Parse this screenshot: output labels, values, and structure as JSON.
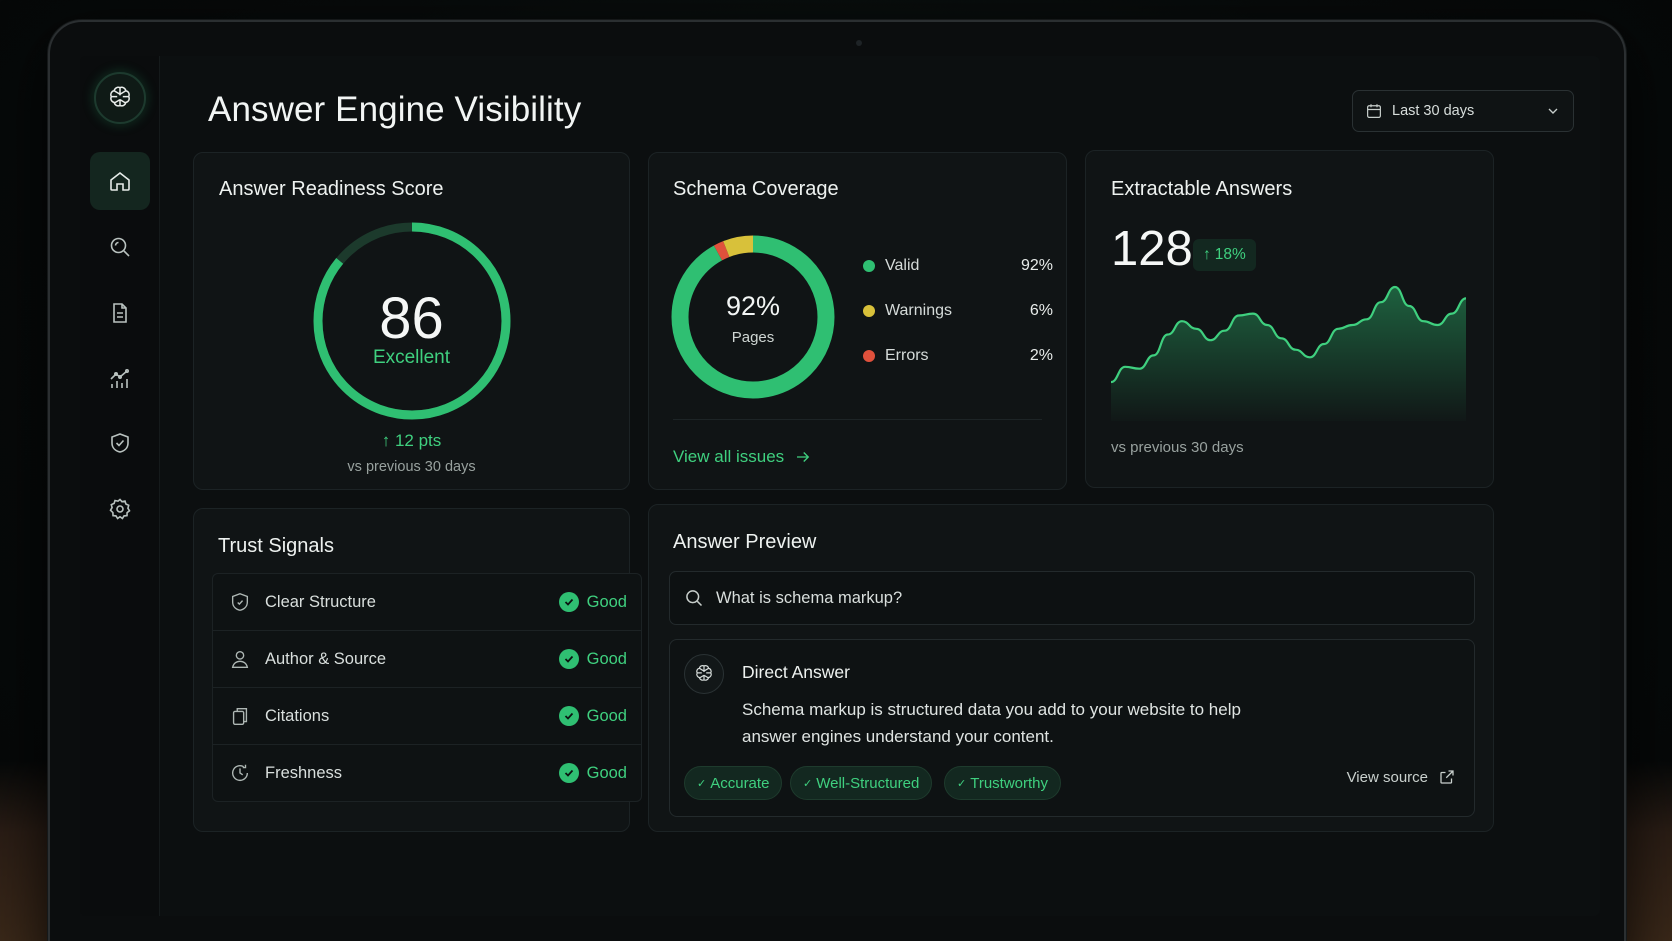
{
  "header": {
    "title": "Answer Engine Visibility",
    "date_range": "Last 30 days"
  },
  "sidebar": {
    "items": [
      "home-icon",
      "search-icon",
      "document-icon",
      "analytics-icon",
      "shield-icon",
      "gear-icon"
    ],
    "active": "home"
  },
  "readiness": {
    "title": "Answer Readiness Score",
    "score": "86",
    "score_value": 86,
    "max": 100,
    "rating": "Excellent",
    "change": "12 pts",
    "comparison": "vs previous 30 days"
  },
  "schema": {
    "title": "Schema Coverage",
    "center_value": "92%",
    "center_label": "Pages",
    "legend": [
      {
        "label": "Valid",
        "pct": "92%",
        "value": 92,
        "color": "#2fbf72"
      },
      {
        "label": "Warnings",
        "pct": "6%",
        "value": 6,
        "color": "#d8c13a"
      },
      {
        "label": "Errors",
        "pct": "2%",
        "value": 2,
        "color": "#e0513c"
      }
    ],
    "link": "View all issues"
  },
  "extractable": {
    "title": "Extractable Answers",
    "value": "128",
    "change": "18%",
    "comparison": "vs previous 30 days",
    "trend": [
      30,
      38,
      37,
      44,
      55,
      62,
      58,
      52,
      57,
      65,
      66,
      60,
      53,
      47,
      43,
      50,
      58,
      60,
      63,
      72,
      80,
      70,
      62,
      60,
      66,
      74
    ]
  },
  "trust": {
    "title": "Trust Signals",
    "items": [
      {
        "label": "Clear Structure",
        "status": "Good",
        "icon": "shield-icon"
      },
      {
        "label": "Author & Source",
        "status": "Good",
        "icon": "user-icon"
      },
      {
        "label": "Citations",
        "status": "Good",
        "icon": "copy-icon"
      },
      {
        "label": "Freshness",
        "status": "Good",
        "icon": "clock-icon"
      }
    ]
  },
  "preview": {
    "title": "Answer Preview",
    "query": "What is schema markup?",
    "answer_title": "Direct Answer",
    "answer_line1": "Schema markup is structured data you add to your website to help",
    "answer_line2": "answer engines understand your content.",
    "tags": [
      "Accurate",
      "Well-Structured",
      "Trustworthy"
    ],
    "view_source": "View source"
  },
  "colors": {
    "accent": "#3fd07f",
    "valid": "#2fbf72",
    "warning": "#d8c13a",
    "error": "#e0513c"
  }
}
